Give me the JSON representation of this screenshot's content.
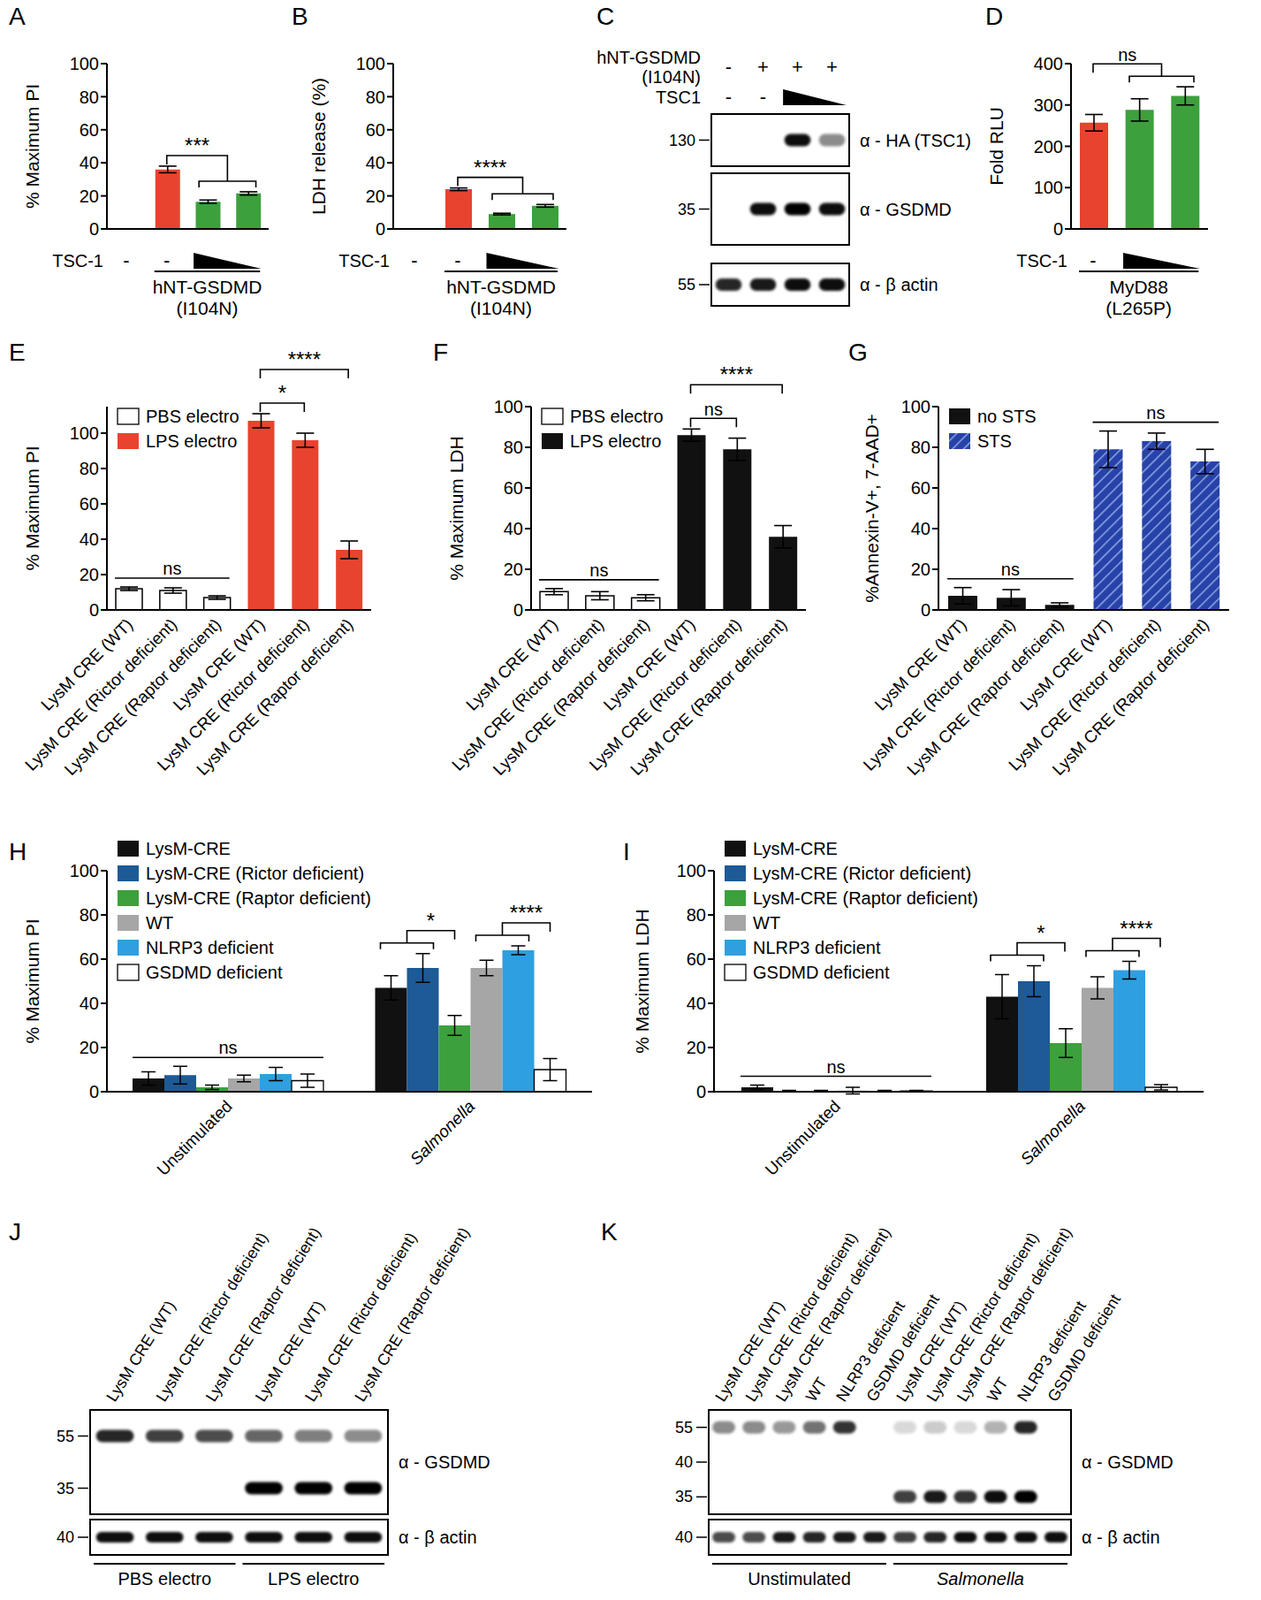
{
  "chart_data": [
    {
      "panel": "A",
      "type": "bar",
      "ylabel": "% Maximum PI",
      "categories": [
        null,
        null,
        null,
        null
      ],
      "values": [
        0,
        36,
        16.5,
        21.5
      ],
      "errors": [
        0,
        2,
        1,
        1
      ],
      "colors": [
        "#e8432e",
        "#e8432e",
        "#3ca03c",
        "#3ca03c"
      ],
      "ylim": [
        0,
        100
      ],
      "yticks": [
        0,
        20,
        40,
        60,
        80,
        100
      ],
      "tick_labels": "y",
      "grid": false,
      "treatment_rows": [
        {
          "label": "TSC-1",
          "values": [
            "-",
            "-",
            null,
            null
          ]
        }
      ],
      "groups": [
        {
          "label": "hNT-GSDMD\n(I104N)",
          "span": [
            1,
            3
          ]
        }
      ],
      "significance": [
        {
          "label": "***",
          "from": [
            1
          ],
          "to": [
            2,
            3
          ]
        }
      ]
    },
    {
      "panel": "B",
      "type": "bar",
      "ylabel": "LDH release (%)",
      "categories": [
        null,
        null,
        null,
        null
      ],
      "values": [
        0,
        24,
        9,
        14
      ],
      "errors": [
        0,
        0.8,
        0.5,
        0.8
      ],
      "colors": [
        "#e8432e",
        "#e8432e",
        "#3ca03c",
        "#3ca03c"
      ],
      "ylim": [
        0,
        100
      ],
      "yticks": [
        0,
        20,
        40,
        60,
        80,
        100
      ],
      "tick_labels": "y",
      "grid": false,
      "treatment_rows": [
        {
          "label": "TSC-1",
          "values": [
            "-",
            "-",
            null,
            null
          ]
        }
      ],
      "groups": [
        {
          "label": "hNT-GSDMD\n(I104N)",
          "span": [
            1,
            3
          ]
        }
      ],
      "significance": [
        {
          "label": "****",
          "from": [
            1
          ],
          "to": [
            2,
            3
          ]
        }
      ]
    },
    {
      "panel": "C",
      "type": "western_blot",
      "rows": [
        {
          "label": "hNT-GSDMD\n(I104N)",
          "values": [
            "-",
            "+",
            "+",
            "+"
          ]
        },
        {
          "label": "TSC1",
          "values": [
            "-",
            "-",
            null,
            null
          ]
        }
      ],
      "strips": [
        {
          "antibody": "α - HA (TSC1)",
          "markers": [
            130
          ],
          "bands": [
            {
              "marker": 130,
              "intensity": [
                0,
                0,
                0.95,
                0.45
              ]
            }
          ]
        },
        {
          "antibody": "α - GSDMD",
          "markers": [
            35
          ],
          "bands": [
            {
              "marker": 35,
              "intensity": [
                0,
                0.95,
                1,
                0.95
              ]
            }
          ]
        },
        {
          "antibody": "α - β actin",
          "markers": [
            55
          ],
          "bands": [
            {
              "intensity": [
                0.85,
                0.9,
                0.95,
                0.95
              ]
            }
          ]
        }
      ]
    },
    {
      "panel": "D",
      "type": "bar",
      "ylabel": "Fold RLU",
      "categories": [
        null,
        null,
        null
      ],
      "values": [
        257,
        288,
        322
      ],
      "errors": [
        20,
        27,
        22
      ],
      "colors": [
        "#e8432e",
        "#3ca03c",
        "#3ca03c"
      ],
      "ylim": [
        0,
        400
      ],
      "yticks": [
        0,
        100,
        200,
        300,
        400
      ],
      "tick_labels": "y",
      "grid": false,
      "treatment_rows": [
        {
          "label": "TSC-1",
          "values": [
            "-",
            null,
            null
          ]
        }
      ],
      "groups": [
        {
          "label": "MyD88\n(L265P)",
          "span": [
            0,
            2
          ]
        }
      ],
      "significance": [
        {
          "label": "ns",
          "from": [
            0
          ],
          "to": [
            1,
            2
          ]
        }
      ]
    },
    {
      "panel": "E",
      "type": "bar",
      "ylabel": "% Maximum PI",
      "categories": [
        "LysM CRE (WT)",
        "LysM CRE (Rictor deficient)",
        "LysM CRE (Raptor deficient)",
        "LysM CRE (WT)",
        "LysM CRE (Rictor deficient)",
        "LysM CRE (Raptor deficient)"
      ],
      "series": [
        {
          "name": "PBS electro",
          "color": "#ffffff",
          "values": [
            12,
            11,
            7,
            null,
            null,
            null
          ],
          "errors": [
            1,
            1.5,
            1,
            null,
            null,
            null
          ]
        },
        {
          "name": "LPS electro",
          "color": "#e8432e",
          "values": [
            null,
            null,
            null,
            107,
            96,
            34
          ],
          "errors": [
            null,
            null,
            null,
            4,
            4,
            5
          ]
        }
      ],
      "legend": "upper left",
      "ylim": [
        0,
        115
      ],
      "yticks": [
        0,
        20,
        40,
        60,
        80,
        100
      ],
      "grid": false,
      "significance": [
        {
          "label": "ns",
          "span": [
            0,
            2
          ]
        },
        {
          "label": "*",
          "from": [
            3
          ],
          "to": [
            4
          ]
        },
        {
          "label": "****",
          "from": [
            3
          ],
          "to": [
            5
          ]
        }
      ]
    },
    {
      "panel": "F",
      "type": "bar",
      "ylabel": "% Maximum LDH",
      "categories": [
        "LysM CRE (WT)",
        "LysM CRE (Rictor deficient)",
        "LysM CRE (Raptor deficient)",
        "LysM CRE (WT)",
        "LysM CRE (Rictor deficient)",
        "LysM CRE (Raptor deficient)"
      ],
      "series": [
        {
          "name": "PBS electro",
          "color": "#ffffff",
          "values": [
            9,
            7,
            6,
            null,
            null,
            null
          ],
          "errors": [
            1.5,
            2,
            1.5,
            null,
            null,
            null
          ]
        },
        {
          "name": "LPS electro",
          "color": "#111111",
          "values": [
            null,
            null,
            null,
            86,
            79,
            36
          ],
          "errors": [
            null,
            null,
            null,
            3,
            5.5,
            5.5
          ]
        }
      ],
      "legend": "upper left",
      "ylim": [
        0,
        100
      ],
      "yticks": [
        0,
        20,
        40,
        60,
        80,
        100
      ],
      "grid": false,
      "significance": [
        {
          "label": "ns",
          "span": [
            0,
            2
          ]
        },
        {
          "label": "ns",
          "from": [
            3
          ],
          "to": [
            4
          ]
        },
        {
          "label": "****",
          "from": [
            3
          ],
          "to": [
            5
          ]
        }
      ]
    },
    {
      "panel": "G",
      "type": "bar",
      "ylabel": "%Annexin-V+, 7-AAD+",
      "categories": [
        "LysM CRE (WT)",
        "LysM CRE (Rictor deficient)",
        "LysM CRE (Raptor deficient)",
        "LysM CRE (WT)",
        "LysM CRE (Rictor deficient)",
        "LysM CRE (Raptor deficient)"
      ],
      "series": [
        {
          "name": "no STS",
          "color": "#111111",
          "values": [
            7,
            6,
            2.5,
            null,
            null,
            null
          ],
          "errors": [
            4,
            4,
            1,
            null,
            null,
            null
          ]
        },
        {
          "name": "STS",
          "color": "#2742a8",
          "values": [
            null,
            null,
            null,
            79,
            83,
            73
          ],
          "errors": [
            null,
            null,
            null,
            9,
            4,
            6
          ]
        }
      ],
      "legend": "upper left",
      "ylim": [
        0,
        100
      ],
      "yticks": [
        0,
        20,
        40,
        60,
        80,
        100
      ],
      "grid": false,
      "significance": [
        {
          "label": "ns",
          "span": [
            0,
            2
          ]
        },
        {
          "label": "ns",
          "span": [
            3,
            5
          ]
        }
      ]
    },
    {
      "panel": "H",
      "type": "bar",
      "ylabel": "% Maximum PI",
      "categories": [
        "Unstimulated",
        "Salmonella"
      ],
      "series": [
        {
          "name": "LysM-CRE",
          "color": "#111111",
          "values": [
            6,
            47
          ],
          "errors": [
            3,
            5.5
          ]
        },
        {
          "name": "LysM-CRE (Rictor deficient)",
          "color": "#1d5a96",
          "values": [
            7.5,
            56
          ],
          "errors": [
            4,
            6.5
          ]
        },
        {
          "name": "LysM-CRE (Raptor deficient)",
          "color": "#3ca03c",
          "values": [
            2,
            30
          ],
          "errors": [
            1,
            4.5
          ]
        },
        {
          "name": "WT",
          "color": "#a6a6a6",
          "values": [
            6,
            56
          ],
          "errors": [
            1.5,
            3.5
          ]
        },
        {
          "name": "NLRP3 deficient",
          "color": "#2e9fe0",
          "values": [
            8,
            64
          ],
          "errors": [
            3,
            2
          ]
        },
        {
          "name": "GSDMD deficient",
          "color": "#ffffff",
          "values": [
            5,
            10
          ],
          "errors": [
            3,
            5
          ]
        }
      ],
      "legend": "upper left",
      "ylim": [
        0,
        100
      ],
      "yticks": [
        0,
        20,
        40,
        60,
        80,
        100
      ],
      "grid": false,
      "significance": [
        {
          "label": "ns",
          "span": [
            0,
            5
          ]
        },
        {
          "label": "*",
          "from": [
            6,
            7
          ],
          "to": [
            8
          ]
        },
        {
          "label": "****",
          "from": [
            9,
            10
          ],
          "to": [
            11
          ]
        }
      ]
    },
    {
      "panel": "I",
      "type": "bar",
      "ylabel": "% Maximum LDH",
      "categories": [
        "Unstimulated",
        "Salmonella"
      ],
      "series": [
        {
          "name": "LysM-CRE",
          "color": "#111111",
          "values": [
            2,
            43
          ],
          "errors": [
            1,
            10
          ]
        },
        {
          "name": "LysM-CRE (Rictor deficient)",
          "color": "#1d5a96",
          "values": [
            0.3,
            50
          ],
          "errors": [
            0.3,
            7
          ]
        },
        {
          "name": "LysM-CRE (Raptor deficient)",
          "color": "#3ca03c",
          "values": [
            0.3,
            22
          ],
          "errors": [
            0.3,
            6.5
          ]
        },
        {
          "name": "WT",
          "color": "#a6a6a6",
          "values": [
            0.5,
            47
          ],
          "errors": [
            1.5,
            5
          ]
        },
        {
          "name": "NLRP3 deficient",
          "color": "#2e9fe0",
          "values": [
            0.3,
            55
          ],
          "errors": [
            0.3,
            4
          ]
        },
        {
          "name": "GSDMD deficient",
          "color": "#ffffff",
          "values": [
            0.3,
            2
          ],
          "errors": [
            0.3,
            1.2
          ]
        }
      ],
      "legend": "upper left",
      "ylim": [
        0,
        100
      ],
      "yticks": [
        0,
        20,
        40,
        60,
        80,
        100
      ],
      "grid": false,
      "significance": [
        {
          "label": "ns",
          "span": [
            0,
            5
          ]
        },
        {
          "label": "*",
          "from": [
            6,
            7
          ],
          "to": [
            8
          ]
        },
        {
          "label": "****",
          "from": [
            9,
            10
          ],
          "to": [
            11
          ]
        }
      ]
    },
    {
      "panel": "J",
      "type": "western_blot",
      "lanes": [
        "LysM CRE (WT)",
        "LysM CRE (Rictor deficient)",
        "LysM CRE (Raptor deficient)",
        "LysM CRE (WT)",
        "LysM CRE (Rictor deficient)",
        "LysM CRE (Raptor deficient)"
      ],
      "strips": [
        {
          "antibody": "α - GSDMD",
          "markers": [
            55,
            35
          ],
          "bands": [
            {
              "marker": 55,
              "intensity": [
                0.85,
                0.75,
                0.7,
                0.6,
                0.5,
                0.45
              ]
            },
            {
              "marker": 35,
              "intensity": [
                0,
                0,
                0,
                1,
                1,
                1
              ]
            }
          ]
        },
        {
          "antibody": "α - β actin",
          "markers": [
            40
          ],
          "bands": [
            {
              "marker": 40,
              "intensity": [
                0.95,
                0.95,
                0.95,
                0.95,
                0.95,
                0.95
              ]
            }
          ]
        }
      ],
      "groups": [
        {
          "label": "PBS electro",
          "span": [
            0,
            2
          ]
        },
        {
          "label": "LPS electro",
          "span": [
            3,
            5
          ]
        }
      ]
    },
    {
      "panel": "K",
      "type": "western_blot",
      "lanes": [
        "LysM CRE (WT)",
        "LysM CRE (Rictor deficient)",
        "LysM CRE (Raptor deficient)",
        "WT",
        "NLRP3 deficient",
        "GSDMD deficient",
        "LysM CRE (WT)",
        "LysM CRE (Rictor deficient)",
        "LysM CRE (Raptor deficient)",
        "WT",
        "NLRP3 deficient",
        "GSDMD deficient"
      ],
      "strips": [
        {
          "antibody": "α - GSDMD",
          "markers": [
            55,
            40,
            35
          ],
          "bands": [
            {
              "marker": 55,
              "intensity": [
                0.45,
                0.45,
                0.4,
                0.55,
                0.8,
                0,
                0.15,
                0.2,
                0.15,
                0.3,
                0.85,
                0
              ]
            },
            {
              "marker": 35,
              "intensity": [
                0,
                0,
                0,
                0,
                0,
                0,
                0.75,
                0.9,
                0.8,
                0.95,
                1,
                0
              ]
            }
          ]
        },
        {
          "antibody": "α - β actin",
          "markers": [
            40
          ],
          "bands": [
            {
              "marker": 40,
              "intensity": [
                0.7,
                0.7,
                0.9,
                0.85,
                0.9,
                0.9,
                0.75,
                0.85,
                0.95,
                0.95,
                0.95,
                0.95
              ]
            }
          ]
        }
      ],
      "groups": [
        {
          "label": "Unstimulated",
          "span": [
            0,
            5
          ]
        },
        {
          "label": "Salmonella",
          "span": [
            6,
            11
          ]
        }
      ]
    }
  ]
}
